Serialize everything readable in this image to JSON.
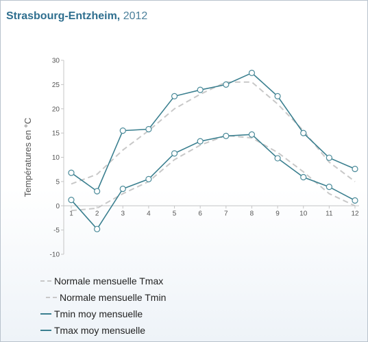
{
  "title": {
    "location": "Strasbourg-Entzheim,",
    "year": "2012"
  },
  "chart_data": {
    "type": "line",
    "title": "Strasbourg-Entzheim, 2012",
    "xlabel": "",
    "ylabel": "Températures en °C",
    "categories": [
      "1",
      "2",
      "3",
      "4",
      "5",
      "6",
      "7",
      "8",
      "9",
      "10",
      "11",
      "12"
    ],
    "y_ticks": [
      "30",
      "25",
      "20",
      "15",
      "10",
      "5",
      "0",
      "-5",
      "-10"
    ],
    "ylim": [
      -10,
      30
    ],
    "grid": false,
    "legend_position": "bottom-left",
    "series": [
      {
        "name": "Normale mensuelle Tmax",
        "style": "dashed",
        "color": "#c8c8c8",
        "markers": false,
        "values": [
          4.5,
          6.5,
          11.5,
          15.5,
          20.0,
          23.0,
          25.5,
          25.5,
          21.0,
          15.5,
          9.0,
          5.0
        ]
      },
      {
        "name": "Normale mensuelle Tmin",
        "style": "dashed",
        "color": "#c8c8c8",
        "markers": false,
        "values": [
          -1.0,
          -0.5,
          2.5,
          5.0,
          9.5,
          12.5,
          14.5,
          14.0,
          11.0,
          7.0,
          2.5,
          0.0
        ]
      },
      {
        "name": "Tmin moy mensuelle",
        "style": "solid",
        "color": "#3a7f8f",
        "markers": true,
        "values": [
          1.2,
          -4.8,
          3.5,
          5.5,
          10.8,
          13.3,
          14.4,
          14.7,
          9.8,
          5.9,
          3.9,
          1.1
        ]
      },
      {
        "name": "Tmax moy mensuelle",
        "style": "solid",
        "color": "#3a7f8f",
        "markers": true,
        "values": [
          6.8,
          3.0,
          15.5,
          15.8,
          22.6,
          23.9,
          25.0,
          27.4,
          22.6,
          15.0,
          9.9,
          7.6
        ]
      }
    ]
  }
}
